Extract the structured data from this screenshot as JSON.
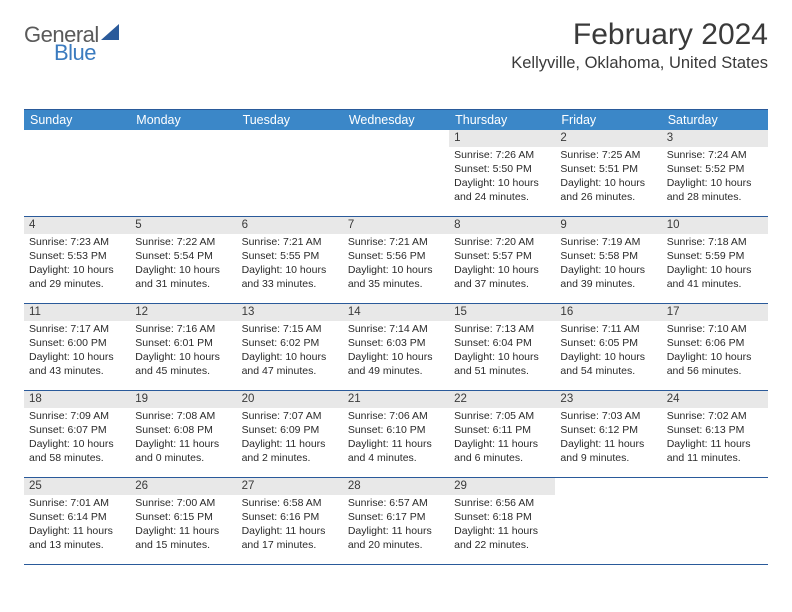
{
  "brand": {
    "word1": "General",
    "word2": "Blue"
  },
  "title": "February 2024",
  "location": "Kellyville, Oklahoma, United States",
  "colors": {
    "header_bg": "#3b87c8",
    "border": "#2a5a9a",
    "daynum_bg": "#e8e8e8",
    "text": "#2a2a2a",
    "logo_gray": "#5a5a5a",
    "logo_blue": "#3b7bbf"
  },
  "weekdays": [
    "Sunday",
    "Monday",
    "Tuesday",
    "Wednesday",
    "Thursday",
    "Friday",
    "Saturday"
  ],
  "weeks": [
    [
      null,
      null,
      null,
      null,
      {
        "n": "1",
        "sr": "7:26 AM",
        "ss": "5:50 PM",
        "dl": "10 hours and 24 minutes."
      },
      {
        "n": "2",
        "sr": "7:25 AM",
        "ss": "5:51 PM",
        "dl": "10 hours and 26 minutes."
      },
      {
        "n": "3",
        "sr": "7:24 AM",
        "ss": "5:52 PM",
        "dl": "10 hours and 28 minutes."
      }
    ],
    [
      {
        "n": "4",
        "sr": "7:23 AM",
        "ss": "5:53 PM",
        "dl": "10 hours and 29 minutes."
      },
      {
        "n": "5",
        "sr": "7:22 AM",
        "ss": "5:54 PM",
        "dl": "10 hours and 31 minutes."
      },
      {
        "n": "6",
        "sr": "7:21 AM",
        "ss": "5:55 PM",
        "dl": "10 hours and 33 minutes."
      },
      {
        "n": "7",
        "sr": "7:21 AM",
        "ss": "5:56 PM",
        "dl": "10 hours and 35 minutes."
      },
      {
        "n": "8",
        "sr": "7:20 AM",
        "ss": "5:57 PM",
        "dl": "10 hours and 37 minutes."
      },
      {
        "n": "9",
        "sr": "7:19 AM",
        "ss": "5:58 PM",
        "dl": "10 hours and 39 minutes."
      },
      {
        "n": "10",
        "sr": "7:18 AM",
        "ss": "5:59 PM",
        "dl": "10 hours and 41 minutes."
      }
    ],
    [
      {
        "n": "11",
        "sr": "7:17 AM",
        "ss": "6:00 PM",
        "dl": "10 hours and 43 minutes."
      },
      {
        "n": "12",
        "sr": "7:16 AM",
        "ss": "6:01 PM",
        "dl": "10 hours and 45 minutes."
      },
      {
        "n": "13",
        "sr": "7:15 AM",
        "ss": "6:02 PM",
        "dl": "10 hours and 47 minutes."
      },
      {
        "n": "14",
        "sr": "7:14 AM",
        "ss": "6:03 PM",
        "dl": "10 hours and 49 minutes."
      },
      {
        "n": "15",
        "sr": "7:13 AM",
        "ss": "6:04 PM",
        "dl": "10 hours and 51 minutes."
      },
      {
        "n": "16",
        "sr": "7:11 AM",
        "ss": "6:05 PM",
        "dl": "10 hours and 54 minutes."
      },
      {
        "n": "17",
        "sr": "7:10 AM",
        "ss": "6:06 PM",
        "dl": "10 hours and 56 minutes."
      }
    ],
    [
      {
        "n": "18",
        "sr": "7:09 AM",
        "ss": "6:07 PM",
        "dl": "10 hours and 58 minutes."
      },
      {
        "n": "19",
        "sr": "7:08 AM",
        "ss": "6:08 PM",
        "dl": "11 hours and 0 minutes."
      },
      {
        "n": "20",
        "sr": "7:07 AM",
        "ss": "6:09 PM",
        "dl": "11 hours and 2 minutes."
      },
      {
        "n": "21",
        "sr": "7:06 AM",
        "ss": "6:10 PM",
        "dl": "11 hours and 4 minutes."
      },
      {
        "n": "22",
        "sr": "7:05 AM",
        "ss": "6:11 PM",
        "dl": "11 hours and 6 minutes."
      },
      {
        "n": "23",
        "sr": "7:03 AM",
        "ss": "6:12 PM",
        "dl": "11 hours and 9 minutes."
      },
      {
        "n": "24",
        "sr": "7:02 AM",
        "ss": "6:13 PM",
        "dl": "11 hours and 11 minutes."
      }
    ],
    [
      {
        "n": "25",
        "sr": "7:01 AM",
        "ss": "6:14 PM",
        "dl": "11 hours and 13 minutes."
      },
      {
        "n": "26",
        "sr": "7:00 AM",
        "ss": "6:15 PM",
        "dl": "11 hours and 15 minutes."
      },
      {
        "n": "27",
        "sr": "6:58 AM",
        "ss": "6:16 PM",
        "dl": "11 hours and 17 minutes."
      },
      {
        "n": "28",
        "sr": "6:57 AM",
        "ss": "6:17 PM",
        "dl": "11 hours and 20 minutes."
      },
      {
        "n": "29",
        "sr": "6:56 AM",
        "ss": "6:18 PM",
        "dl": "11 hours and 22 minutes."
      },
      null,
      null
    ]
  ],
  "labels": {
    "sunrise": "Sunrise: ",
    "sunset": "Sunset: ",
    "daylight": "Daylight: "
  }
}
